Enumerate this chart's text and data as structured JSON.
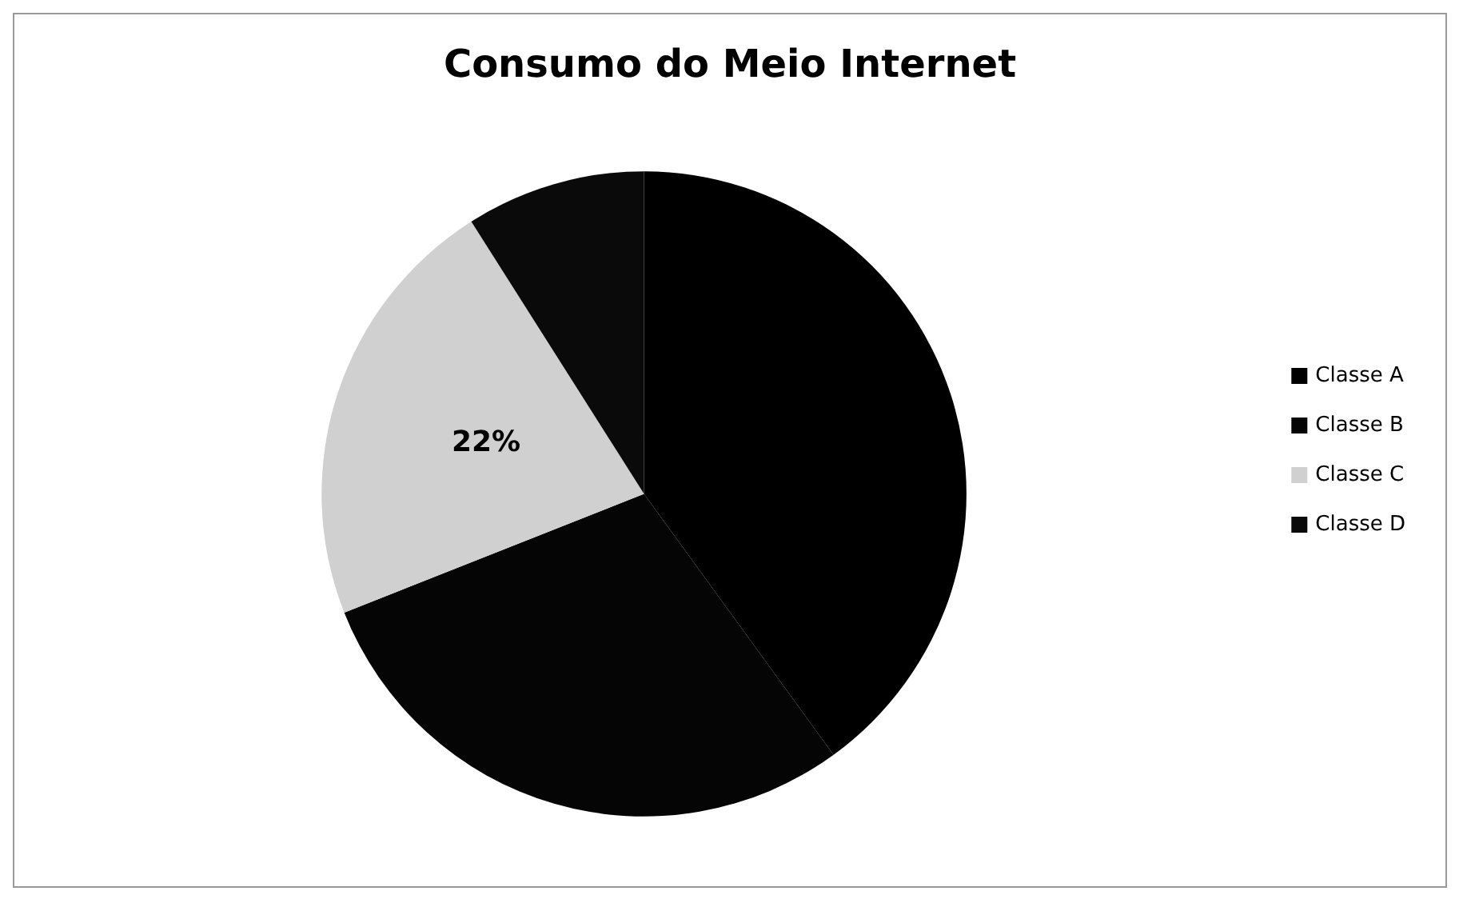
{
  "chart_data": {
    "type": "pie",
    "title": "Consumo do Meio Internet",
    "categories": [
      "Classe A",
      "Classe B",
      "Classe C",
      "Classe D"
    ],
    "values": [
      40,
      29,
      22,
      9
    ],
    "colors": [
      "#000000",
      "#050505",
      "#d0d0d0",
      "#0a0a0a"
    ],
    "value_labels": [
      null,
      null,
      "22%",
      null
    ],
    "legend": "right"
  }
}
